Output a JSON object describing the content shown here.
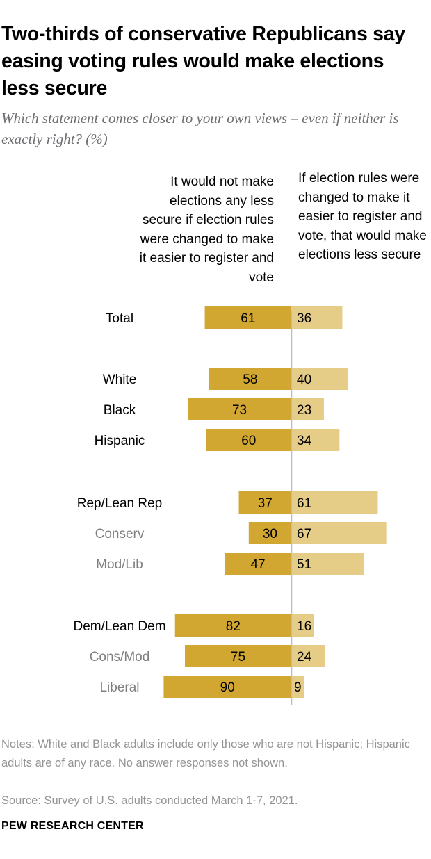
{
  "title": "Two-thirds of conservative Republicans say easing voting rules would make elections less secure",
  "subtitle": "Which statement comes closer to your own views – even if neither is exactly right? (%)",
  "notes": "Notes: White and Black adults include only those who are not Hispanic; Hispanic adults are of any race. No answer responses not shown.",
  "source": "Source: Survey of U.S. adults conducted March 1-7, 2021.",
  "footer": "PEW RESEARCH CENTER",
  "colors": {
    "left_bar": "#d1a631",
    "right_bar": "#e6cd87",
    "divider": "#bdbdbd",
    "primary_label": "#000000",
    "secondary_label": "#7f7f7f"
  },
  "chart_data": {
    "type": "bar",
    "orientation": "horizontal-diverging",
    "series": [
      {
        "name": "It would not make elections any less secure if election rules were changed to make it easier to register and vote",
        "color": "#d1a631",
        "values": [
          61,
          58,
          73,
          60,
          37,
          30,
          47,
          82,
          75,
          90
        ]
      },
      {
        "name": "If election rules were changed to make it easier to register and vote, that would make elections less secure",
        "color": "#e6cd87",
        "values": [
          36,
          40,
          23,
          34,
          61,
          67,
          51,
          16,
          24,
          9
        ]
      }
    ],
    "categories": [
      "Total",
      "White",
      "Black",
      "Hispanic",
      "Rep/Lean Rep",
      "Conserv",
      "Mod/Lib",
      "Dem/Lean Dem",
      "Cons/Mod",
      "Liberal"
    ],
    "category_style": [
      "primary",
      "primary",
      "primary",
      "primary",
      "primary",
      "secondary",
      "secondary",
      "primary",
      "secondary",
      "secondary"
    ],
    "groups": [
      [
        0
      ],
      [
        1,
        2,
        3
      ],
      [
        4,
        5,
        6
      ],
      [
        7,
        8,
        9
      ]
    ]
  }
}
